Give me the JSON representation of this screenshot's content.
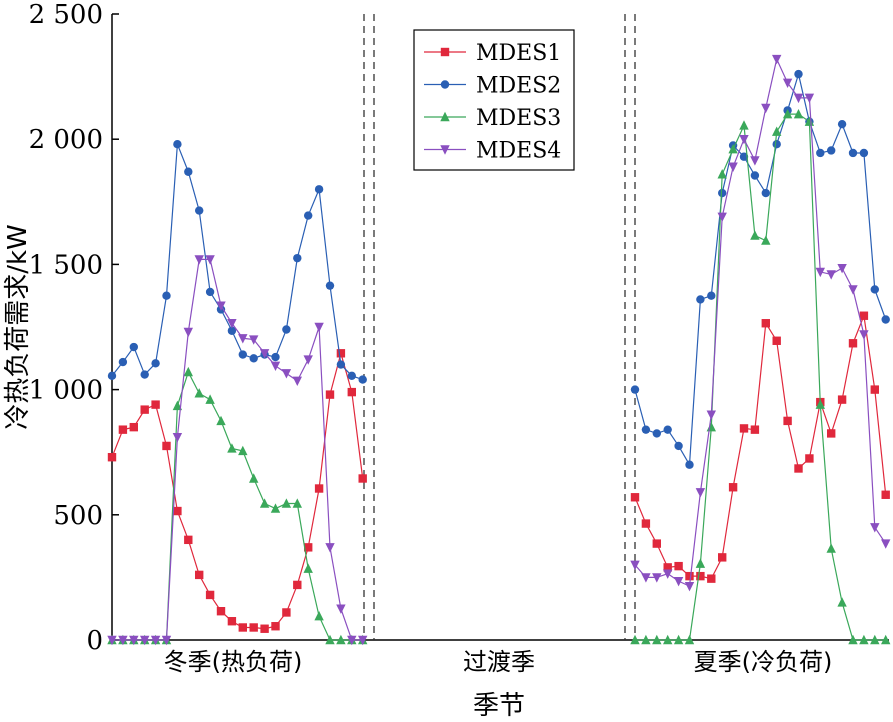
{
  "chart_data": {
    "type": "line",
    "ylabel": "冷热负荷需求/kW",
    "xlabel": "季节",
    "ylim": [
      0,
      2500
    ],
    "yticks": [
      0,
      500,
      1000,
      1500,
      2000,
      2500
    ],
    "ytick_labels": [
      "0",
      "500",
      "1 000",
      "1 500",
      "2 000",
      "2 500"
    ],
    "season_labels": [
      "冬季(热负荷)",
      "过渡季",
      "夏季(冷负荷)"
    ],
    "legend_position": "top-center",
    "grid": false,
    "series": [
      {
        "name": "MDES1",
        "color": "#e0283c",
        "marker": "square",
        "winter": [
          730,
          840,
          850,
          920,
          940,
          775,
          515,
          400,
          260,
          180,
          115,
          75,
          50,
          50,
          45,
          55,
          110,
          220,
          370,
          605,
          980,
          1145,
          990,
          645
        ],
        "summer": [
          570,
          465,
          385,
          290,
          295,
          255,
          255,
          245,
          330,
          610,
          845,
          840,
          1265,
          1195,
          875,
          685,
          725,
          950,
          825,
          960,
          1185,
          1295,
          1000,
          580
        ]
      },
      {
        "name": "MDES2",
        "color": "#2a5fb4",
        "marker": "circle",
        "winter": [
          1055,
          1110,
          1170,
          1060,
          1105,
          1375,
          1980,
          1870,
          1715,
          1390,
          1320,
          1235,
          1140,
          1125,
          1140,
          1130,
          1240,
          1525,
          1695,
          1800,
          1415,
          1100,
          1055,
          1040
        ],
        "summer": [
          1000,
          840,
          825,
          840,
          775,
          700,
          1360,
          1375,
          1785,
          1975,
          1930,
          1855,
          1785,
          1980,
          2115,
          2260,
          2070,
          1945,
          1955,
          2060,
          1945,
          1945,
          1400,
          1280
        ]
      },
      {
        "name": "MDES3",
        "color": "#3aa85a",
        "marker": "triangle-up",
        "winter": [
          0,
          0,
          0,
          0,
          0,
          0,
          935,
          1070,
          985,
          960,
          875,
          765,
          755,
          645,
          545,
          525,
          545,
          545,
          285,
          95,
          0,
          0,
          0,
          0
        ],
        "summer": [
          0,
          0,
          0,
          0,
          0,
          0,
          305,
          850,
          1860,
          1960,
          2055,
          1615,
          1595,
          2030,
          2100,
          2100,
          2070,
          940,
          365,
          150,
          0,
          0,
          0,
          0
        ]
      },
      {
        "name": "MDES4",
        "color": "#8a4fc0",
        "marker": "triangle-down",
        "winter": [
          0,
          0,
          0,
          0,
          0,
          0,
          810,
          1230,
          1520,
          1520,
          1335,
          1265,
          1205,
          1200,
          1145,
          1095,
          1065,
          1035,
          1120,
          1250,
          370,
          125,
          0,
          0
        ],
        "summer": [
          300,
          250,
          250,
          265,
          235,
          215,
          590,
          900,
          1690,
          1890,
          2000,
          1915,
          2125,
          2320,
          2225,
          2165,
          2165,
          1470,
          1460,
          1485,
          1400,
          1220,
          450,
          385
        ]
      }
    ]
  }
}
